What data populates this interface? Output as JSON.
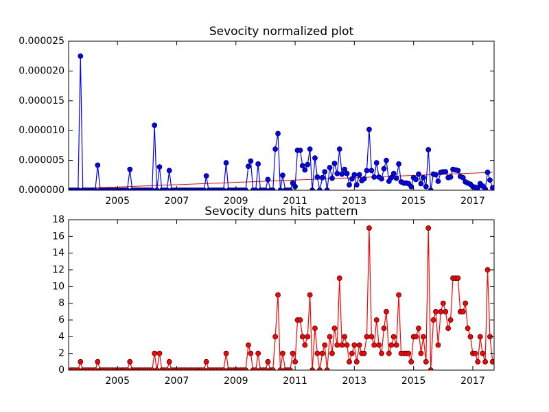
{
  "chart_data": [
    {
      "type": "line",
      "title": "Sevocity normalized plot",
      "xlim": [
        2003.35,
        2017.72
      ],
      "xticks": [
        2005,
        2007,
        2009,
        2011,
        2013,
        2015,
        2017
      ],
      "ylim": [
        0,
        2.5e-05
      ],
      "yticks": [
        {
          "value": 0,
          "label": "0.000000"
        },
        {
          "value": 5e-06,
          "label": "0.000005"
        },
        {
          "value": 1e-05,
          "label": "0.000010"
        },
        {
          "value": 1.5e-05,
          "label": "0.000015"
        },
        {
          "value": 2e-05,
          "label": "0.000020"
        },
        {
          "value": 2.5e-05,
          "label": "0.000025"
        }
      ],
      "x": [
        2003.42,
        2003.5,
        2003.58,
        2003.67,
        2003.75,
        2003.83,
        2003.92,
        2004.0,
        2004.08,
        2004.17,
        2004.25,
        2004.33,
        2004.42,
        2004.5,
        2004.58,
        2004.67,
        2004.75,
        2004.83,
        2004.92,
        2005.0,
        2005.08,
        2005.17,
        2005.25,
        2005.33,
        2005.42,
        2005.5,
        2005.58,
        2005.67,
        2005.75,
        2005.83,
        2005.92,
        2006.0,
        2006.08,
        2006.17,
        2006.25,
        2006.33,
        2006.42,
        2006.5,
        2006.58,
        2006.67,
        2006.75,
        2006.83,
        2006.92,
        2007.0,
        2007.08,
        2007.17,
        2007.25,
        2007.33,
        2007.42,
        2007.5,
        2007.58,
        2007.67,
        2007.75,
        2007.83,
        2007.92,
        2008.0,
        2008.08,
        2008.17,
        2008.25,
        2008.33,
        2008.42,
        2008.5,
        2008.58,
        2008.67,
        2008.75,
        2008.83,
        2008.92,
        2009.0,
        2009.08,
        2009.17,
        2009.25,
        2009.33,
        2009.42,
        2009.5,
        2009.58,
        2009.67,
        2009.75,
        2009.83,
        2009.92,
        2010.0,
        2010.08,
        2010.17,
        2010.25,
        2010.33,
        2010.42,
        2010.5,
        2010.58,
        2010.67,
        2010.75,
        2010.83,
        2010.92,
        2011.0,
        2011.08,
        2011.17,
        2011.25,
        2011.33,
        2011.42,
        2011.5,
        2011.58,
        2011.67,
        2011.75,
        2011.83,
        2011.92,
        2012.0,
        2012.08,
        2012.17,
        2012.25,
        2012.33,
        2012.42,
        2012.5,
        2012.58,
        2012.67,
        2012.75,
        2012.83,
        2012.92,
        2013.0,
        2013.08,
        2013.17,
        2013.25,
        2013.33,
        2013.42,
        2013.5,
        2013.58,
        2013.67,
        2013.75,
        2013.83,
        2013.92,
        2014.0,
        2014.08,
        2014.17,
        2014.25,
        2014.33,
        2014.42,
        2014.5,
        2014.58,
        2014.67,
        2014.75,
        2014.83,
        2014.92,
        2015.0,
        2015.08,
        2015.17,
        2015.25,
        2015.33,
        2015.42,
        2015.5,
        2015.58,
        2015.67,
        2015.75,
        2015.83,
        2015.92,
        2016.0,
        2016.08,
        2016.17,
        2016.25,
        2016.33,
        2016.42,
        2016.5,
        2016.58,
        2016.67,
        2016.75,
        2016.83,
        2016.92,
        2017.0,
        2017.08,
        2017.17,
        2017.25,
        2017.33,
        2017.42,
        2017.5,
        2017.58,
        2017.67
      ],
      "series": [
        {
          "color": "#0000ff",
          "marker_edge": "#000000",
          "values": [
            0,
            0,
            0,
            0,
            2.25e-05,
            0,
            0,
            0,
            0,
            0,
            0,
            4.2e-06,
            0,
            0,
            0,
            0,
            0,
            0,
            0,
            0,
            0,
            0,
            0,
            0,
            3.5e-06,
            0,
            0,
            0,
            0,
            0,
            0,
            0,
            0,
            0,
            1.09e-05,
            0,
            3.9e-06,
            0,
            0,
            0,
            3.3e-06,
            0,
            0,
            0,
            0,
            0,
            0,
            0,
            0,
            0,
            0,
            0,
            0,
            0,
            0,
            2.4e-06,
            0,
            0,
            0,
            0,
            0,
            0,
            0,
            4.6e-06,
            0,
            0,
            0,
            0,
            0,
            0,
            0,
            0,
            4e-06,
            4.9e-06,
            0,
            0,
            4.4e-06,
            0,
            0,
            0,
            1.8e-06,
            0,
            0,
            6.9e-06,
            9.5e-06,
            0,
            2.5e-06,
            0,
            0,
            0,
            1.2e-06,
            6e-07,
            6.7e-06,
            6.7e-06,
            4.1e-06,
            3.4e-06,
            4.3e-06,
            6.9e-06,
            0,
            5.4e-06,
            2.2e-06,
            0,
            2.1e-06,
            3.1e-06,
            0,
            3.8e-06,
            2e-06,
            4.5e-06,
            2.8e-06,
            6.9e-06,
            2.7e-06,
            3.5e-06,
            2.8e-06,
            9e-07,
            1.9e-06,
            2.6e-06,
            9e-07,
            2.6e-06,
            1.6e-06,
            1.9e-06,
            3.3e-06,
            1.02e-05,
            3.3e-06,
            2.2e-06,
            4.6e-06,
            2.2e-06,
            1.9e-06,
            3.6e-06,
            5e-06,
            1.5e-06,
            2.1e-06,
            2.8e-06,
            2e-06,
            4.4e-06,
            1.4e-06,
            1.2e-06,
            1.2e-06,
            1.1e-06,
            6e-07,
            2.1e-06,
            1.8e-06,
            2.7e-06,
            1.1e-06,
            2.1e-06,
            6e-07,
            6.8e-06,
            0,
            2.7e-06,
            2.6e-06,
            1.5e-06,
            3e-06,
            3.1e-06,
            3.1e-06,
            2.1e-06,
            2.2e-06,
            3.5e-06,
            3.4e-06,
            3.3e-06,
            2.3e-06,
            2.1e-06,
            1.4e-06,
            1.2e-06,
            1e-06,
            6e-07,
            5e-07,
            4e-07,
            1.1e-06,
            7e-07,
            2e-07,
            3e-06,
            1.7e-06,
            4e-07
          ]
        }
      ],
      "trend": {
        "color": "#ff0000",
        "x": [
          2003.42,
          2017.67
        ],
        "values": [
          2.3e-07,
          3e-06
        ]
      }
    },
    {
      "type": "line",
      "title": "Sevocity duns hits pattern",
      "xlim": [
        2003.35,
        2017.72
      ],
      "xticks": [
        2005,
        2007,
        2009,
        2011,
        2013,
        2015,
        2017
      ],
      "ylim": [
        0,
        18
      ],
      "yticks": [
        0,
        2,
        4,
        6,
        8,
        10,
        12,
        14,
        16,
        18
      ],
      "x": [
        2003.42,
        2003.5,
        2003.58,
        2003.67,
        2003.75,
        2003.83,
        2003.92,
        2004.0,
        2004.08,
        2004.17,
        2004.25,
        2004.33,
        2004.42,
        2004.5,
        2004.58,
        2004.67,
        2004.75,
        2004.83,
        2004.92,
        2005.0,
        2005.08,
        2005.17,
        2005.25,
        2005.33,
        2005.42,
        2005.5,
        2005.58,
        2005.67,
        2005.75,
        2005.83,
        2005.92,
        2006.0,
        2006.08,
        2006.17,
        2006.25,
        2006.33,
        2006.42,
        2006.5,
        2006.58,
        2006.67,
        2006.75,
        2006.83,
        2006.92,
        2007.0,
        2007.08,
        2007.17,
        2007.25,
        2007.33,
        2007.42,
        2007.5,
        2007.58,
        2007.67,
        2007.75,
        2007.83,
        2007.92,
        2008.0,
        2008.08,
        2008.17,
        2008.25,
        2008.33,
        2008.42,
        2008.5,
        2008.58,
        2008.67,
        2008.75,
        2008.83,
        2008.92,
        2009.0,
        2009.08,
        2009.17,
        2009.25,
        2009.33,
        2009.42,
        2009.5,
        2009.58,
        2009.67,
        2009.75,
        2009.83,
        2009.92,
        2010.0,
        2010.08,
        2010.17,
        2010.25,
        2010.33,
        2010.42,
        2010.5,
        2010.58,
        2010.67,
        2010.75,
        2010.83,
        2010.92,
        2011.0,
        2011.08,
        2011.17,
        2011.25,
        2011.33,
        2011.42,
        2011.5,
        2011.58,
        2011.67,
        2011.75,
        2011.83,
        2011.92,
        2012.0,
        2012.08,
        2012.17,
        2012.25,
        2012.33,
        2012.42,
        2012.5,
        2012.58,
        2012.67,
        2012.75,
        2012.83,
        2012.92,
        2013.0,
        2013.08,
        2013.17,
        2013.25,
        2013.33,
        2013.42,
        2013.5,
        2013.58,
        2013.67,
        2013.75,
        2013.83,
        2013.92,
        2014.0,
        2014.08,
        2014.17,
        2014.25,
        2014.33,
        2014.42,
        2014.5,
        2014.58,
        2014.67,
        2014.75,
        2014.83,
        2014.92,
        2015.0,
        2015.08,
        2015.17,
        2015.25,
        2015.33,
        2015.42,
        2015.5,
        2015.58,
        2015.67,
        2015.75,
        2015.83,
        2015.92,
        2016.0,
        2016.08,
        2016.17,
        2016.25,
        2016.33,
        2016.42,
        2016.5,
        2016.58,
        2016.67,
        2016.75,
        2016.83,
        2016.92,
        2017.0,
        2017.08,
        2017.17,
        2017.25,
        2017.33,
        2017.42,
        2017.5,
        2017.58,
        2017.67
      ],
      "series": [
        {
          "color": "#ff0000",
          "marker_edge": "#000000",
          "values": [
            0,
            0,
            0,
            0,
            1,
            0,
            0,
            0,
            0,
            0,
            0,
            1,
            0,
            0,
            0,
            0,
            0,
            0,
            0,
            0,
            0,
            0,
            0,
            0,
            1,
            0,
            0,
            0,
            0,
            0,
            0,
            0,
            0,
            0,
            2,
            0,
            2,
            0,
            0,
            0,
            1,
            0,
            0,
            0,
            0,
            0,
            0,
            0,
            0,
            0,
            0,
            0,
            0,
            0,
            0,
            1,
            0,
            0,
            0,
            0,
            0,
            0,
            0,
            2,
            0,
            0,
            0,
            0,
            0,
            0,
            0,
            0,
            3,
            2,
            0,
            0,
            2,
            0,
            0,
            0,
            1,
            0,
            0,
            4,
            9,
            0,
            2,
            0,
            0,
            0,
            2,
            1,
            6,
            6,
            4,
            3,
            4,
            9,
            0,
            5,
            2,
            0,
            2,
            3,
            0,
            4,
            2,
            5,
            3,
            11,
            3,
            4,
            3,
            1,
            2,
            3,
            1,
            3,
            2,
            2,
            4,
            17,
            4,
            3,
            6,
            3,
            2,
            5,
            7,
            2,
            3,
            4,
            3,
            9,
            2,
            2,
            2,
            2,
            1,
            4,
            4,
            5,
            2,
            4,
            1,
            17,
            0,
            6,
            7,
            3,
            7,
            8,
            7,
            5,
            6,
            11,
            11,
            11,
            7,
            7,
            8,
            5,
            4,
            2,
            2,
            1,
            4,
            2,
            1,
            12,
            4,
            1
          ]
        }
      ]
    }
  ]
}
